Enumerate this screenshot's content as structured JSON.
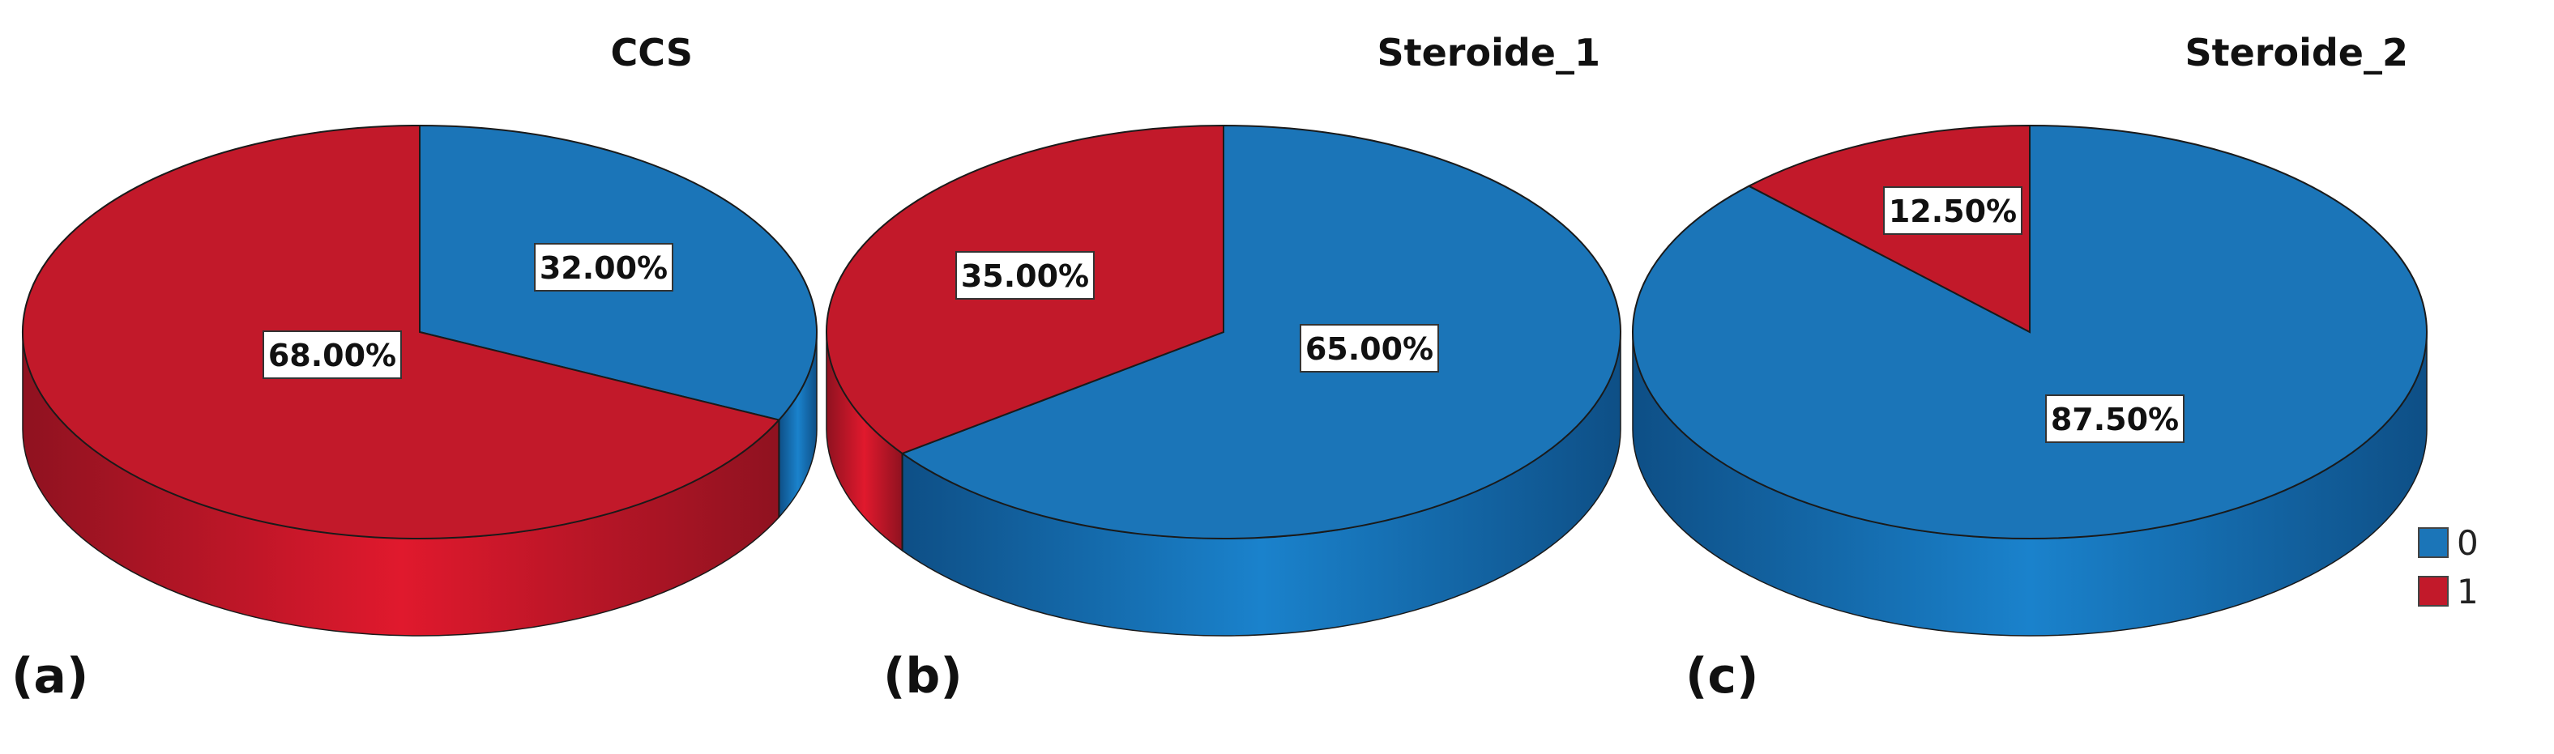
{
  "colors": {
    "cat0": "#1b75b8",
    "cat1": "#c2192a"
  },
  "legend": {
    "position": "bottom-right",
    "items": [
      {
        "label": "0",
        "color": "#1b75b8"
      },
      {
        "label": "1",
        "color": "#c2192a"
      }
    ]
  },
  "chart_data": [
    {
      "type": "pie",
      "panel": "(a)",
      "title": "CCS",
      "categories": [
        "0",
        "1"
      ],
      "values": [
        32.0,
        68.0
      ],
      "labels": [
        "32.00%",
        "68.00%"
      ]
    },
    {
      "type": "pie",
      "panel": "(b)",
      "title": "Steroide_1",
      "categories": [
        "0",
        "1"
      ],
      "values": [
        65.0,
        35.0
      ],
      "labels": [
        "65.00%",
        "35.00%"
      ]
    },
    {
      "type": "pie",
      "panel": "(c)",
      "title": "Steroide_2",
      "categories": [
        "0",
        "1"
      ],
      "values": [
        87.5,
        12.5
      ],
      "labels": [
        "87.50%",
        "12.50%"
      ]
    }
  ]
}
